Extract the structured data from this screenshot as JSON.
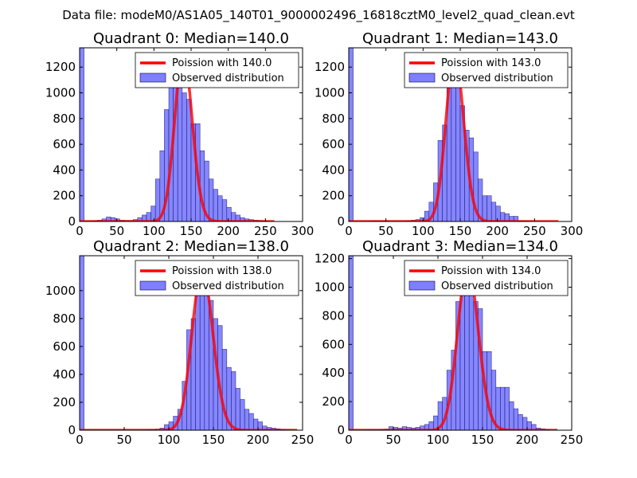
{
  "suptitle": "Data file: modeM0/AS1A05_140T01_9000002496_16818cztM0_level2_quad_clean.evt",
  "colors": {
    "bar": "#7f7fff",
    "bar_edge": "#00005f",
    "curve": "#ff0000"
  },
  "chart_data": [
    {
      "type": "bar",
      "title": "Quadrant 0: Median=140.0",
      "legend": [
        "Poission with 140.0",
        "Observed distribution"
      ],
      "legend_loc": "top-right",
      "xlim": [
        0,
        300
      ],
      "ylim": [
        0,
        1350
      ],
      "xticks": [
        0,
        50,
        100,
        150,
        200,
        250,
        300
      ],
      "yticks": [
        0,
        200,
        400,
        600,
        800,
        1000,
        1200
      ],
      "bin_width": 6,
      "bins": [
        {
          "x": 0,
          "h": 1350
        },
        {
          "x": 6,
          "h": 3
        },
        {
          "x": 12,
          "h": 3
        },
        {
          "x": 18,
          "h": 5
        },
        {
          "x": 24,
          "h": 10
        },
        {
          "x": 30,
          "h": 20
        },
        {
          "x": 36,
          "h": 35
        },
        {
          "x": 42,
          "h": 30
        },
        {
          "x": 48,
          "h": 20
        },
        {
          "x": 54,
          "h": 10
        },
        {
          "x": 60,
          "h": 8
        },
        {
          "x": 66,
          "h": 8
        },
        {
          "x": 72,
          "h": 15
        },
        {
          "x": 78,
          "h": 30
        },
        {
          "x": 84,
          "h": 50
        },
        {
          "x": 90,
          "h": 70
        },
        {
          "x": 96,
          "h": 120
        },
        {
          "x": 102,
          "h": 330
        },
        {
          "x": 108,
          "h": 550
        },
        {
          "x": 114,
          "h": 870
        },
        {
          "x": 120,
          "h": 1100
        },
        {
          "x": 126,
          "h": 1080
        },
        {
          "x": 132,
          "h": 1280
        },
        {
          "x": 138,
          "h": 1000
        },
        {
          "x": 144,
          "h": 950
        },
        {
          "x": 150,
          "h": 760
        },
        {
          "x": 156,
          "h": 760
        },
        {
          "x": 162,
          "h": 550
        },
        {
          "x": 168,
          "h": 470
        },
        {
          "x": 174,
          "h": 330
        },
        {
          "x": 180,
          "h": 250
        },
        {
          "x": 186,
          "h": 200
        },
        {
          "x": 192,
          "h": 170
        },
        {
          "x": 198,
          "h": 110
        },
        {
          "x": 204,
          "h": 70
        },
        {
          "x": 210,
          "h": 50
        },
        {
          "x": 216,
          "h": 30
        },
        {
          "x": 222,
          "h": 20
        },
        {
          "x": 228,
          "h": 15
        },
        {
          "x": 234,
          "h": 10
        },
        {
          "x": 240,
          "h": 8
        },
        {
          "x": 246,
          "h": 5
        }
      ],
      "poisson": {
        "mu": 140.0,
        "scale": 1300,
        "x_range": [
          0,
          262
        ],
        "step": 2
      }
    },
    {
      "type": "bar",
      "title": "Quadrant 1: Median=143.0",
      "legend": [
        "Poission with 143.0",
        "Observed distribution"
      ],
      "legend_loc": "top-right",
      "xlim": [
        0,
        300
      ],
      "ylim": [
        0,
        1350
      ],
      "xticks": [
        0,
        50,
        100,
        150,
        200,
        250,
        300
      ],
      "yticks": [
        0,
        200,
        400,
        600,
        800,
        1000,
        1200
      ],
      "bin_width": 6,
      "bins": [
        {
          "x": 0,
          "h": 1350
        },
        {
          "x": 6,
          "h": 2
        },
        {
          "x": 12,
          "h": 2
        },
        {
          "x": 18,
          "h": 3
        },
        {
          "x": 24,
          "h": 3
        },
        {
          "x": 30,
          "h": 4
        },
        {
          "x": 36,
          "h": 4
        },
        {
          "x": 42,
          "h": 4
        },
        {
          "x": 48,
          "h": 4
        },
        {
          "x": 54,
          "h": 3
        },
        {
          "x": 60,
          "h": 3
        },
        {
          "x": 66,
          "h": 3
        },
        {
          "x": 72,
          "h": 3
        },
        {
          "x": 78,
          "h": 5
        },
        {
          "x": 84,
          "h": 10
        },
        {
          "x": 90,
          "h": 15
        },
        {
          "x": 96,
          "h": 30
        },
        {
          "x": 102,
          "h": 80
        },
        {
          "x": 108,
          "h": 150
        },
        {
          "x": 114,
          "h": 300
        },
        {
          "x": 120,
          "h": 630
        },
        {
          "x": 126,
          "h": 750
        },
        {
          "x": 132,
          "h": 1100
        },
        {
          "x": 138,
          "h": 1300
        },
        {
          "x": 144,
          "h": 1170
        },
        {
          "x": 150,
          "h": 900
        },
        {
          "x": 156,
          "h": 710
        },
        {
          "x": 162,
          "h": 650
        },
        {
          "x": 168,
          "h": 540
        },
        {
          "x": 174,
          "h": 330
        },
        {
          "x": 180,
          "h": 200
        },
        {
          "x": 186,
          "h": 200
        },
        {
          "x": 192,
          "h": 150
        },
        {
          "x": 198,
          "h": 120
        },
        {
          "x": 204,
          "h": 70
        },
        {
          "x": 210,
          "h": 60
        },
        {
          "x": 216,
          "h": 40
        },
        {
          "x": 222,
          "h": 40
        },
        {
          "x": 228,
          "h": 5
        },
        {
          "x": 234,
          "h": 4
        },
        {
          "x": 240,
          "h": 3
        }
      ],
      "poisson": {
        "mu": 143.0,
        "scale": 1300,
        "x_range": [
          0,
          282
        ],
        "step": 2
      }
    },
    {
      "type": "bar",
      "title": "Quadrant 2: Median=138.0",
      "legend": [
        "Poission with 138.0",
        "Observed distribution"
      ],
      "legend_loc": "top-right",
      "xlim": [
        0,
        250
      ],
      "ylim": [
        0,
        1250
      ],
      "xticks": [
        0,
        50,
        100,
        150,
        200,
        250
      ],
      "yticks": [
        0,
        200,
        400,
        600,
        800,
        1000
      ],
      "bin_width": 5,
      "bins": [
        {
          "x": 0,
          "h": 1250
        },
        {
          "x": 5,
          "h": 2
        },
        {
          "x": 10,
          "h": 2
        },
        {
          "x": 15,
          "h": 2
        },
        {
          "x": 20,
          "h": 2
        },
        {
          "x": 25,
          "h": 2
        },
        {
          "x": 30,
          "h": 2
        },
        {
          "x": 35,
          "h": 2
        },
        {
          "x": 40,
          "h": 2
        },
        {
          "x": 45,
          "h": 2
        },
        {
          "x": 50,
          "h": 2
        },
        {
          "x": 55,
          "h": 2
        },
        {
          "x": 60,
          "h": 2
        },
        {
          "x": 65,
          "h": 2
        },
        {
          "x": 70,
          "h": 3
        },
        {
          "x": 75,
          "h": 4
        },
        {
          "x": 80,
          "h": 5
        },
        {
          "x": 85,
          "h": 8
        },
        {
          "x": 90,
          "h": 15
        },
        {
          "x": 95,
          "h": 40
        },
        {
          "x": 100,
          "h": 60
        },
        {
          "x": 105,
          "h": 100
        },
        {
          "x": 110,
          "h": 150
        },
        {
          "x": 115,
          "h": 350
        },
        {
          "x": 120,
          "h": 720
        },
        {
          "x": 125,
          "h": 800
        },
        {
          "x": 130,
          "h": 1150
        },
        {
          "x": 135,
          "h": 1050
        },
        {
          "x": 140,
          "h": 1130
        },
        {
          "x": 145,
          "h": 930
        },
        {
          "x": 150,
          "h": 800
        },
        {
          "x": 155,
          "h": 750
        },
        {
          "x": 160,
          "h": 580
        },
        {
          "x": 165,
          "h": 450
        },
        {
          "x": 170,
          "h": 420
        },
        {
          "x": 175,
          "h": 300
        },
        {
          "x": 180,
          "h": 220
        },
        {
          "x": 185,
          "h": 150
        },
        {
          "x": 190,
          "h": 120
        },
        {
          "x": 195,
          "h": 80
        },
        {
          "x": 200,
          "h": 60
        },
        {
          "x": 205,
          "h": 30
        },
        {
          "x": 210,
          "h": 20
        },
        {
          "x": 215,
          "h": 15
        },
        {
          "x": 220,
          "h": 10
        },
        {
          "x": 225,
          "h": 5
        },
        {
          "x": 230,
          "h": 3
        }
      ],
      "poisson": {
        "mu": 138.0,
        "scale": 1150,
        "x_range": [
          0,
          244
        ],
        "step": 2
      }
    },
    {
      "type": "bar",
      "title": "Quadrant 3: Median=134.0",
      "legend": [
        "Poission with 134.0",
        "Observed distribution"
      ],
      "legend_loc": "top-right",
      "xlim": [
        0,
        250
      ],
      "ylim": [
        0,
        1220
      ],
      "xticks": [
        0,
        50,
        100,
        150,
        200,
        250
      ],
      "yticks": [
        0,
        200,
        400,
        600,
        800,
        1000,
        1200
      ],
      "bin_width": 5,
      "bins": [
        {
          "x": 0,
          "h": 1220
        },
        {
          "x": 5,
          "h": 2
        },
        {
          "x": 10,
          "h": 2
        },
        {
          "x": 15,
          "h": 2
        },
        {
          "x": 20,
          "h": 3
        },
        {
          "x": 25,
          "h": 3
        },
        {
          "x": 30,
          "h": 3
        },
        {
          "x": 35,
          "h": 5
        },
        {
          "x": 40,
          "h": 8
        },
        {
          "x": 45,
          "h": 25
        },
        {
          "x": 50,
          "h": 20
        },
        {
          "x": 55,
          "h": 15
        },
        {
          "x": 60,
          "h": 25
        },
        {
          "x": 65,
          "h": 20
        },
        {
          "x": 70,
          "h": 15
        },
        {
          "x": 75,
          "h": 20
        },
        {
          "x": 80,
          "h": 30
        },
        {
          "x": 85,
          "h": 40
        },
        {
          "x": 90,
          "h": 60
        },
        {
          "x": 95,
          "h": 100
        },
        {
          "x": 100,
          "h": 200
        },
        {
          "x": 105,
          "h": 230
        },
        {
          "x": 110,
          "h": 420
        },
        {
          "x": 115,
          "h": 560
        },
        {
          "x": 120,
          "h": 900
        },
        {
          "x": 125,
          "h": 1150
        },
        {
          "x": 130,
          "h": 1050
        },
        {
          "x": 135,
          "h": 1100
        },
        {
          "x": 140,
          "h": 900
        },
        {
          "x": 145,
          "h": 850
        },
        {
          "x": 150,
          "h": 550
        },
        {
          "x": 155,
          "h": 550
        },
        {
          "x": 160,
          "h": 420
        },
        {
          "x": 165,
          "h": 300
        },
        {
          "x": 170,
          "h": 300
        },
        {
          "x": 175,
          "h": 300
        },
        {
          "x": 180,
          "h": 200
        },
        {
          "x": 185,
          "h": 150
        },
        {
          "x": 190,
          "h": 110
        },
        {
          "x": 195,
          "h": 90
        },
        {
          "x": 200,
          "h": 60
        },
        {
          "x": 205,
          "h": 40
        },
        {
          "x": 210,
          "h": 15
        },
        {
          "x": 215,
          "h": 10
        },
        {
          "x": 220,
          "h": 5
        }
      ],
      "poisson": {
        "mu": 134.0,
        "scale": 1150,
        "x_range": [
          0,
          234
        ],
        "step": 2
      }
    }
  ]
}
